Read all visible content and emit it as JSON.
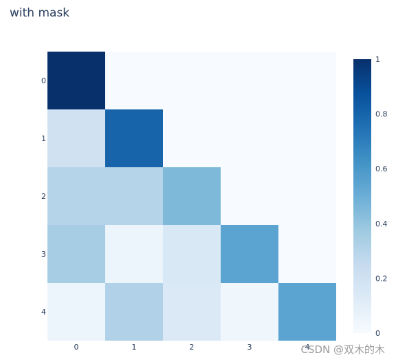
{
  "chart_data": {
    "type": "heatmap",
    "title": "with mask",
    "x": [
      "0",
      "1",
      "2",
      "3",
      "4"
    ],
    "y": [
      "0",
      "1",
      "2",
      "3",
      "4"
    ],
    "z": [
      [
        1.0,
        null,
        null,
        null,
        null
      ],
      [
        0.2,
        0.8,
        null,
        null,
        null
      ],
      [
        0.3,
        0.3,
        0.45,
        null,
        null
      ],
      [
        0.35,
        0.05,
        0.15,
        0.55,
        null
      ],
      [
        0.05,
        0.32,
        0.14,
        0.04,
        0.55
      ]
    ],
    "zmin": 0,
    "zmax": 1,
    "colorscale": "Blues",
    "mask_color": "#f7fbff",
    "colorbar": {
      "ticks": [
        0,
        0.2,
        0.4,
        0.6,
        0.8,
        1
      ],
      "tick_labels": [
        "0",
        "0.2",
        "0.4",
        "0.6",
        "0.8",
        "1"
      ]
    }
  },
  "watermark": "CSDN @双木的木"
}
